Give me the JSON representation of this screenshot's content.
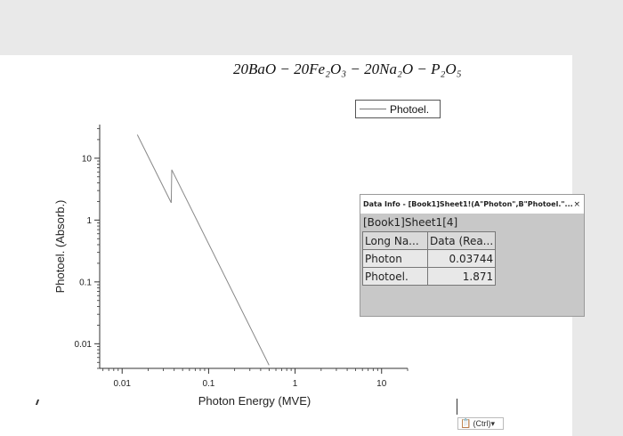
{
  "chart_data": {
    "type": "line",
    "title": "20BaO − 20Fe₂O₃ − 20Na₂O − P₂O₅",
    "xlabel": "Photon Energy (MVE)",
    "ylabel": "Photoel. (Absorb.)",
    "x_scale": "log",
    "y_scale": "log",
    "xlim": [
      0.0055,
      20
    ],
    "ylim": [
      0.004,
      35
    ],
    "x_ticks": [
      {
        "value": 0.01,
        "label": "0.01"
      },
      {
        "value": 0.1,
        "label": "0.1"
      },
      {
        "value": 1,
        "label": "1"
      },
      {
        "value": 10,
        "label": "10"
      }
    ],
    "y_ticks": [
      {
        "value": 0.01,
        "label": "0.01"
      },
      {
        "value": 0.1,
        "label": "0.1"
      },
      {
        "value": 1,
        "label": "1"
      },
      {
        "value": 10,
        "label": "10"
      }
    ],
    "series": [
      {
        "name": "Photoel.",
        "color": "#888888",
        "x": [
          0.015,
          0.037,
          0.0375,
          0.5
        ],
        "y": [
          24,
          1.9,
          6.5,
          0.0045
        ]
      }
    ],
    "legend_position": "top-right",
    "grid": false
  },
  "data_info": {
    "title": "Data Info - [Book1]Sheet1!(A\"Photon\",B\"Photoel.\"...",
    "close": "×",
    "sheet": "[Book1]Sheet1[4]",
    "headers": [
      "Long Na...",
      "Data (Rea..."
    ],
    "rows": [
      {
        "name": "Photon",
        "value": "0.03744"
      },
      {
        "name": "Photoel.",
        "value": "1.871"
      }
    ]
  },
  "paste_options": {
    "label": "(Ctrl)",
    "arrow": "▾",
    "icon": "clipboard-icon"
  }
}
